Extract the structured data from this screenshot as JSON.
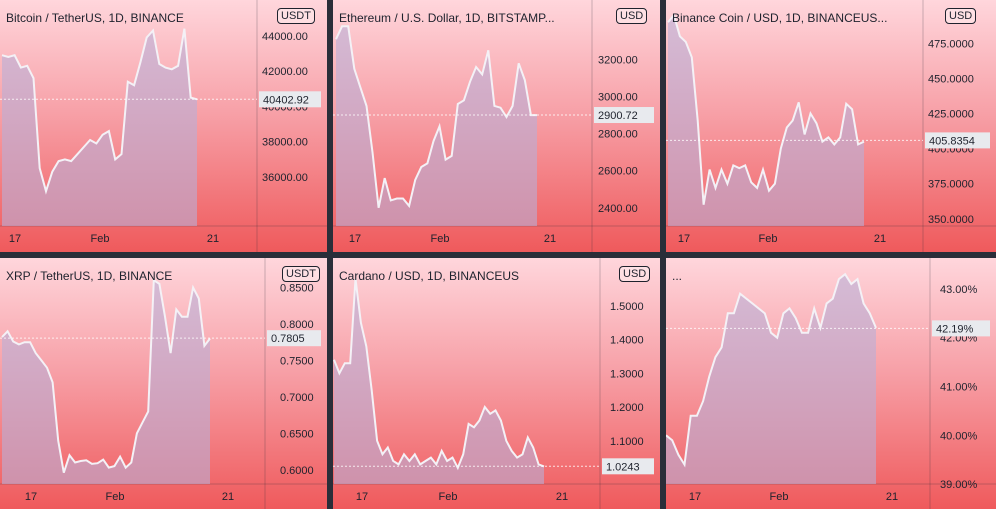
{
  "panels": [
    {
      "id": "btc",
      "title": "Bitcoin / TetherUS, 1D, BINANCE",
      "unit": "USDT",
      "last_label": "40402.92",
      "chart_data": {
        "type": "area",
        "title": "Bitcoin / TetherUS, 1D, BINANCE",
        "yticks": [
          "44000.00",
          "42000.00",
          "40000.00",
          "38000.00",
          "36000.00"
        ],
        "ytick_values": [
          44000,
          42000,
          40000,
          38000,
          36000
        ],
        "ylim": [
          33000,
          45800
        ],
        "xticks": [
          "17",
          "Feb",
          "21"
        ],
        "last_value": 40402.92,
        "values": [
          42900,
          42800,
          42900,
          42200,
          42300,
          41600,
          36500,
          35200,
          36300,
          36900,
          37000,
          36900,
          37300,
          37700,
          38100,
          37900,
          38400,
          38600,
          37000,
          37300,
          41400,
          41200,
          42500,
          43900,
          44300,
          42400,
          42200,
          42100,
          42300,
          44400,
          40500,
          40400
        ]
      }
    },
    {
      "id": "eth",
      "title": "Ethereum / U.S. Dollar, 1D, BITSTAMP...",
      "unit": "USD",
      "last_label": "2900.72",
      "chart_data": {
        "type": "area",
        "title": "Ethereum / U.S. Dollar, 1D, BITSTAMP...",
        "yticks": [
          "3200.00",
          "3000.00",
          "2800.00",
          "2600.00",
          "2400.00"
        ],
        "ytick_values": [
          3200,
          3000,
          2800,
          2600,
          2400
        ],
        "ylim": [
          2280,
          3500
        ],
        "xticks": [
          "17",
          "Feb",
          "21"
        ],
        "last_value": 2900.72,
        "values": [
          3310,
          3380,
          3380,
          3150,
          3050,
          2950,
          2700,
          2400,
          2560,
          2440,
          2450,
          2450,
          2410,
          2550,
          2620,
          2640,
          2760,
          2840,
          2660,
          2680,
          2960,
          2980,
          3080,
          3160,
          3120,
          3250,
          2950,
          2940,
          2890,
          2950,
          3180,
          3090,
          2900,
          2900
        ]
      }
    },
    {
      "id": "bnb",
      "title": "Binance Coin / USD, 1D, BINANCEUS...",
      "unit": "USD",
      "last_label": "405.8354",
      "chart_data": {
        "type": "area",
        "title": "Binance Coin / USD, 1D, BINANCEUS...",
        "yticks": [
          "475.0000",
          "450.0000",
          "425.0000",
          "400.0000",
          "375.0000",
          "350.0000"
        ],
        "ytick_values": [
          475,
          450,
          425,
          400,
          375,
          350
        ],
        "ylim": [
          342,
          503
        ],
        "xticks": [
          "17",
          "Feb",
          "21"
        ],
        "last_value": 405.8354,
        "values": [
          490,
          495,
          480,
          476,
          465,
          420,
          360,
          385,
          372,
          385,
          375,
          388,
          386,
          388,
          376,
          372,
          385,
          370,
          375,
          400,
          415,
          420,
          433,
          410,
          425,
          418,
          405,
          408,
          403,
          408,
          432,
          428,
          403,
          405
        ]
      }
    },
    {
      "id": "xrp",
      "title": "XRP / TetherUS, 1D, BINANCE",
      "unit": "USDT",
      "last_label": "0.7805",
      "chart_data": {
        "type": "area",
        "title": "XRP / TetherUS, 1D, BINANCE",
        "yticks": [
          "0.8500",
          "0.8000",
          "0.7500",
          "0.7000",
          "0.6500",
          "0.6000"
        ],
        "ytick_values": [
          0.85,
          0.8,
          0.75,
          0.7,
          0.65,
          0.6
        ],
        "ylim": [
          0.575,
          0.885
        ],
        "xticks": [
          "17",
          "Feb",
          "21"
        ],
        "last_value": 0.7805,
        "values": [
          0.782,
          0.79,
          0.776,
          0.772,
          0.775,
          0.775,
          0.76,
          0.75,
          0.74,
          0.72,
          0.64,
          0.596,
          0.62,
          0.61,
          0.612,
          0.613,
          0.608,
          0.609,
          0.614,
          0.603,
          0.605,
          0.618,
          0.603,
          0.61,
          0.65,
          0.665,
          0.68,
          0.86,
          0.855,
          0.81,
          0.76,
          0.82,
          0.81,
          0.81,
          0.85,
          0.835,
          0.77,
          0.78
        ]
      }
    },
    {
      "id": "ada",
      "title": "Cardano / USD, 1D, BINANCEUS",
      "unit": "USD",
      "last_label": "1.0243",
      "chart_data": {
        "type": "area",
        "title": "Cardano / USD, 1D, BINANCEUS",
        "yticks": [
          "1.5000",
          "1.4000",
          "1.3000",
          "1.2000",
          "1.1000"
        ],
        "ytick_values": [
          1.5,
          1.4,
          1.3,
          1.2,
          1.1
        ],
        "ylim": [
          0.96,
          1.63
        ],
        "xticks": [
          "17",
          "Feb",
          "21"
        ],
        "last_value": 1.0243,
        "values": [
          1.34,
          1.3,
          1.33,
          1.33,
          1.58,
          1.45,
          1.38,
          1.25,
          1.1,
          1.06,
          1.08,
          1.04,
          1.03,
          1.06,
          1.04,
          1.06,
          1.03,
          1.04,
          1.05,
          1.03,
          1.07,
          1.04,
          1.05,
          1.02,
          1.06,
          1.15,
          1.14,
          1.16,
          1.2,
          1.18,
          1.19,
          1.16,
          1.1,
          1.07,
          1.05,
          1.06,
          1.11,
          1.08,
          1.03,
          1.024
        ]
      }
    },
    {
      "id": "last",
      "title": "...",
      "unit": "",
      "last_label": "42.19%",
      "chart_data": {
        "type": "area",
        "title": "...",
        "yticks": [
          "43.00%",
          "42.00%",
          "41.00%",
          "40.00%",
          "39.00%"
        ],
        "ytick_values": [
          43,
          42,
          41,
          40,
          39
        ],
        "ylim": [
          38.92,
          43.55
        ],
        "xticks": [
          "17",
          "Feb",
          "21"
        ],
        "last_value": 42.19,
        "values": [
          40.0,
          39.9,
          39.6,
          39.4,
          40.4,
          40.4,
          40.7,
          41.2,
          41.6,
          41.8,
          42.5,
          42.5,
          42.9,
          42.8,
          42.7,
          42.6,
          42.5,
          42.1,
          42.0,
          42.5,
          42.6,
          42.4,
          42.1,
          42.1,
          42.6,
          42.2,
          42.7,
          42.8,
          43.2,
          43.3,
          43.1,
          43.2,
          42.7,
          42.5,
          42.2
        ]
      }
    }
  ]
}
